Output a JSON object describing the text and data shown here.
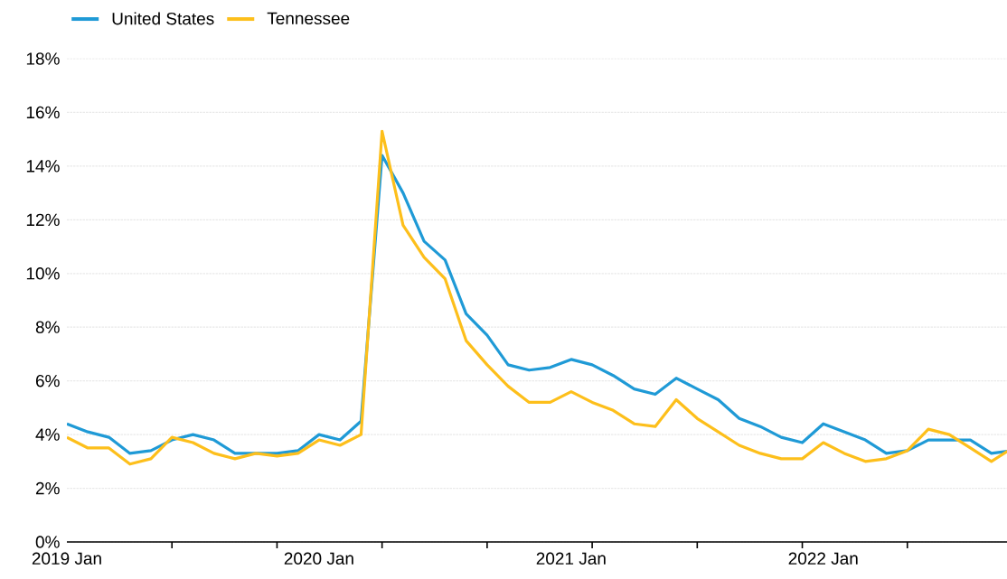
{
  "chart_data": {
    "type": "line",
    "x": [
      "2019-01",
      "2019-02",
      "2019-03",
      "2019-04",
      "2019-05",
      "2019-06",
      "2019-07",
      "2019-08",
      "2019-09",
      "2019-10",
      "2019-11",
      "2019-12",
      "2020-01",
      "2020-02",
      "2020-03",
      "2020-04",
      "2020-05",
      "2020-06",
      "2020-07",
      "2020-08",
      "2020-09",
      "2020-10",
      "2020-11",
      "2020-12",
      "2021-01",
      "2021-02",
      "2021-03",
      "2021-04",
      "2021-05",
      "2021-06",
      "2021-07",
      "2021-08",
      "2021-09",
      "2021-10",
      "2021-11",
      "2021-12",
      "2022-01",
      "2022-02",
      "2022-03",
      "2022-04",
      "2022-05",
      "2022-06",
      "2022-07",
      "2022-08",
      "2022-09",
      "2022-10"
    ],
    "series": [
      {
        "name": "United States",
        "color": "#1f9ad6",
        "values": [
          4.4,
          4.1,
          3.9,
          3.3,
          3.4,
          3.8,
          4.0,
          3.8,
          3.3,
          3.3,
          3.3,
          3.4,
          4.0,
          3.8,
          4.5,
          14.4,
          13.0,
          11.2,
          10.5,
          8.5,
          7.7,
          6.6,
          6.4,
          6.5,
          6.8,
          6.6,
          6.2,
          5.7,
          5.5,
          6.1,
          5.7,
          5.3,
          4.6,
          4.3,
          3.9,
          3.7,
          4.4,
          4.1,
          3.8,
          3.3,
          3.4,
          3.8,
          3.8,
          3.8,
          3.3,
          3.4
        ]
      },
      {
        "name": "Tennessee",
        "color": "#fdbf1b",
        "values": [
          3.9,
          3.5,
          3.5,
          2.9,
          3.1,
          3.9,
          3.7,
          3.3,
          3.1,
          3.3,
          3.2,
          3.3,
          3.8,
          3.6,
          4.0,
          15.3,
          11.8,
          10.6,
          9.8,
          7.5,
          6.6,
          5.8,
          5.2,
          5.2,
          5.6,
          5.2,
          4.9,
          4.4,
          4.3,
          5.3,
          4.6,
          4.1,
          3.6,
          3.3,
          3.1,
          3.1,
          3.7,
          3.3,
          3.0,
          3.1,
          3.4,
          4.2,
          4.0,
          3.5,
          3.0,
          3.5
        ]
      }
    ],
    "xlim": [
      "2019-01",
      "2022-10"
    ],
    "xticks": [
      {
        "value": "2019-01",
        "label": "2019 Jan"
      },
      {
        "value": "2019-06",
        "label": null
      },
      {
        "value": "2019-11",
        "label": null
      },
      {
        "value": "2020-01",
        "label": "2020 Jan"
      },
      {
        "value": "2020-04",
        "label": null
      },
      {
        "value": "2020-09",
        "label": null
      },
      {
        "value": "2021-01",
        "label": "2021 Jan"
      },
      {
        "value": "2021-02",
        "label": null
      },
      {
        "value": "2021-07",
        "label": null
      },
      {
        "value": "2021-12",
        "label": null
      },
      {
        "value": "2022-01",
        "label": "2022 Jan"
      },
      {
        "value": "2022-05",
        "label": null
      },
      {
        "value": "2022-10",
        "label": null
      }
    ],
    "ylim": [
      0,
      18
    ],
    "yticks": [
      {
        "value": 0,
        "label": "0%"
      },
      {
        "value": 2,
        "label": "2%"
      },
      {
        "value": 4,
        "label": "4%"
      },
      {
        "value": 6,
        "label": "6%"
      },
      {
        "value": 8,
        "label": "8%"
      },
      {
        "value": 10,
        "label": "10%"
      },
      {
        "value": 12,
        "label": "12%"
      },
      {
        "value": 14,
        "label": "14%"
      },
      {
        "value": 16,
        "label": "16%"
      },
      {
        "value": 18,
        "label": "18%"
      }
    ],
    "grid": "y",
    "legend": "top left",
    "marker": "none",
    "line_style": "solid"
  }
}
